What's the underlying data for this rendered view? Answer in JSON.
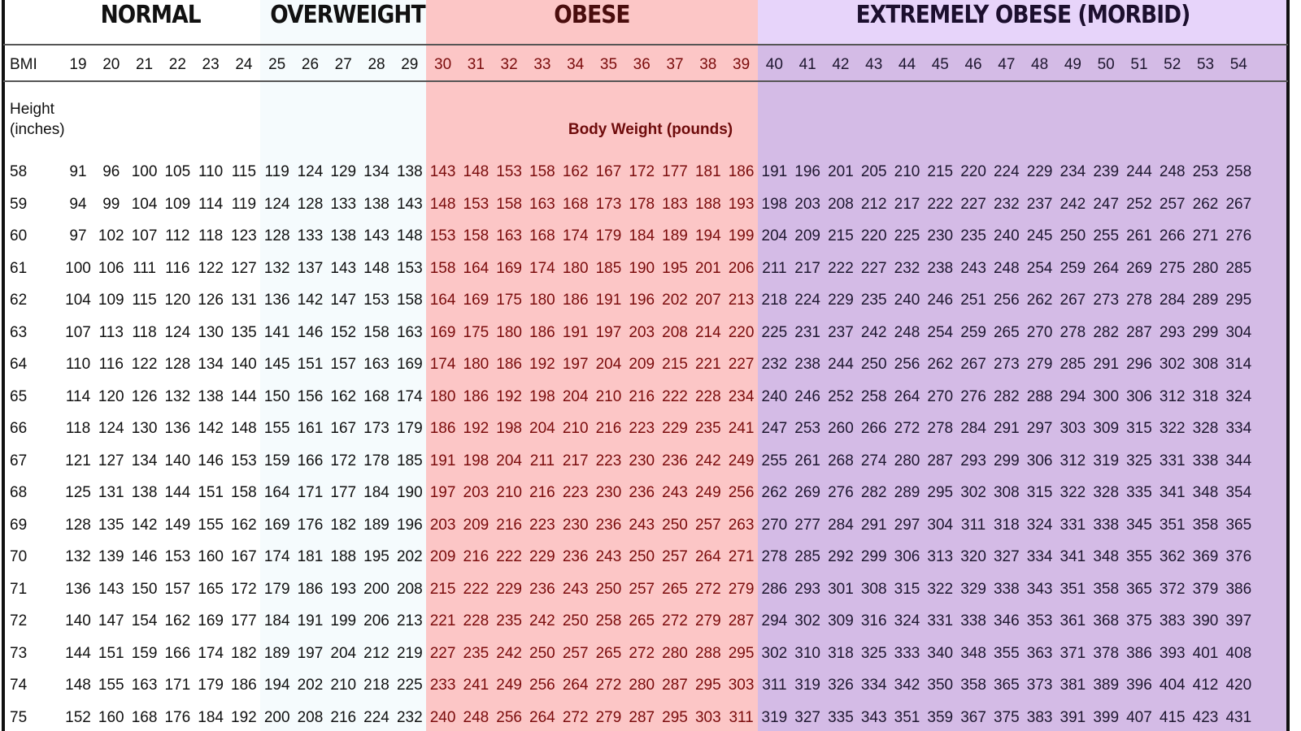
{
  "colors": {
    "normal": "#ffffff",
    "overweight": "#f5fbfd",
    "obese": "#fcc6c6",
    "morbid_header": "#e7d4fa",
    "morbid": "#d4bbe6",
    "obese_text": "#7a0c0c"
  },
  "chart_data": {
    "type": "table",
    "title": "",
    "categories": [
      {
        "label": "NORMAL",
        "bmi_range": [
          19,
          24
        ]
      },
      {
        "label": "OVERWEIGHT",
        "bmi_range": [
          25,
          29
        ]
      },
      {
        "label": "OBESE",
        "bmi_range": [
          30,
          39
        ]
      },
      {
        "label": "EXTREMELY OBESE (MORBID)",
        "bmi_range": [
          40,
          54
        ]
      }
    ],
    "bmi_row_label": "BMI",
    "bmi_values": [
      19,
      20,
      21,
      22,
      23,
      24,
      25,
      26,
      27,
      28,
      29,
      30,
      31,
      32,
      33,
      34,
      35,
      36,
      37,
      38,
      39,
      40,
      41,
      42,
      43,
      44,
      45,
      46,
      47,
      48,
      49,
      50,
      51,
      52,
      53,
      54
    ],
    "height_label": [
      "Height",
      "(inches)"
    ],
    "weight_label": "Body Weight (pounds)",
    "rows": [
      {
        "height": "58",
        "weights": [
          "91",
          "96",
          "100",
          "105",
          "110",
          "115",
          "119",
          "124",
          "129",
          "134",
          "138",
          "143",
          "148",
          "153",
          "158",
          "162",
          "167",
          "172",
          "177",
          "181",
          "186",
          "191",
          "196",
          "201",
          "205",
          "210",
          "215",
          "220",
          "224",
          "229",
          "234",
          "239",
          "244",
          "248",
          "253",
          "258"
        ]
      },
      {
        "height": "59",
        "weights": [
          "94",
          "99",
          "104",
          "109",
          "114",
          "119",
          "124",
          "128",
          "133",
          "138",
          "143",
          "148",
          "153",
          "158",
          "163",
          "168",
          "173",
          "178",
          "183",
          "188",
          "193",
          "198",
          "203",
          "208",
          "212",
          "217",
          "222",
          "227",
          "232",
          "237",
          "242",
          "247",
          "252",
          "257",
          "262",
          "267"
        ]
      },
      {
        "height": "60",
        "weights": [
          "97",
          "102",
          "107",
          "112",
          "118",
          "123",
          "128",
          "133",
          "138",
          "143",
          "148",
          "153",
          "158",
          "163",
          "168",
          "174",
          "179",
          "184",
          "189",
          "194",
          "199",
          "204",
          "209",
          "215",
          "220",
          "225",
          "230",
          "235",
          "240",
          "245",
          "250",
          "255",
          "261",
          "266",
          "271",
          "276"
        ]
      },
      {
        "height": "61",
        "weights": [
          "100",
          "106",
          "111",
          "116",
          "122",
          "127",
          "132",
          "137",
          "143",
          "148",
          "153",
          "158",
          "164",
          "169",
          "174",
          "180",
          "185",
          "190",
          "195",
          "201",
          "206",
          "211",
          "217",
          "222",
          "227",
          "232",
          "238",
          "243",
          "248",
          "254",
          "259",
          "264",
          "269",
          "275",
          "280",
          "285"
        ]
      },
      {
        "height": "62",
        "weights": [
          "104",
          "109",
          "115",
          "120",
          "126",
          "131",
          "136",
          "142",
          "147",
          "153",
          "158",
          "164",
          "169",
          "175",
          "180",
          "186",
          "191",
          "196",
          "202",
          "207",
          "213",
          "218",
          "224",
          "229",
          "235",
          "240",
          "246",
          "251",
          "256",
          "262",
          "267",
          "273",
          "278",
          "284",
          "289",
          "295"
        ]
      },
      {
        "height": "63",
        "weights": [
          "107",
          "113",
          "118",
          "124",
          "130",
          "135",
          "141",
          "146",
          "152",
          "158",
          "163",
          "169",
          "175",
          "180",
          "186",
          "191",
          "197",
          "203",
          "208",
          "214",
          "220",
          "225",
          "231",
          "237",
          "242",
          "248",
          "254",
          "259",
          "265",
          "270",
          "278",
          "282",
          "287",
          "293",
          "299",
          "304"
        ]
      },
      {
        "height": "64",
        "weights": [
          "110",
          "116",
          "122",
          "128",
          "134",
          "140",
          "145",
          "151",
          "157",
          "163",
          "169",
          "174",
          "180",
          "186",
          "192",
          "197",
          "204",
          "209",
          "215",
          "221",
          "227",
          "232",
          "238",
          "244",
          "250",
          "256",
          "262",
          "267",
          "273",
          "279",
          "285",
          "291",
          "296",
          "302",
          "308",
          "314"
        ]
      },
      {
        "height": "65",
        "weights": [
          "114",
          "120",
          "126",
          "132",
          "138",
          "144",
          "150",
          "156",
          "162",
          "168",
          "174",
          "180",
          "186",
          "192",
          "198",
          "204",
          "210",
          "216",
          "222",
          "228",
          "234",
          "240",
          "246",
          "252",
          "258",
          "264",
          "270",
          "276",
          "282",
          "288",
          "294",
          "300",
          "306",
          "312",
          "318",
          "324"
        ]
      },
      {
        "height": "66",
        "weights": [
          "118",
          "124",
          "130",
          "136",
          "142",
          "148",
          "155",
          "161",
          "167",
          "173",
          "179",
          "186",
          "192",
          "198",
          "204",
          "210",
          "216",
          "223",
          "229",
          "235",
          "241",
          "247",
          "253",
          "260",
          "266",
          "272",
          "278",
          "284",
          "291",
          "297",
          "303",
          "309",
          "315",
          "322",
          "328",
          "334"
        ]
      },
      {
        "height": "67",
        "weights": [
          "121",
          "127",
          "134",
          "140",
          "146",
          "153",
          "159",
          "166",
          "172",
          "178",
          "185",
          "191",
          "198",
          "204",
          "211",
          "217",
          "223",
          "230",
          "236",
          "242",
          "249",
          "255",
          "261",
          "268",
          "274",
          "280",
          "287",
          "293",
          "299",
          "306",
          "312",
          "319",
          "325",
          "331",
          "338",
          "344"
        ]
      },
      {
        "height": "68",
        "weights": [
          "125",
          "131",
          "138",
          "144",
          "151",
          "158",
          "164",
          "171",
          "177",
          "184",
          "190",
          "197",
          "203",
          "210",
          "216",
          "223",
          "230",
          "236",
          "243",
          "249",
          "256",
          "262",
          "269",
          "276",
          "282",
          "289",
          "295",
          "302",
          "308",
          "315",
          "322",
          "328",
          "335",
          "341",
          "348",
          "354"
        ]
      },
      {
        "height": "69",
        "weights": [
          "128",
          "135",
          "142",
          "149",
          "155",
          "162",
          "169",
          "176",
          "182",
          "189",
          "196",
          "203",
          "209",
          "216",
          "223",
          "230",
          "236",
          "243",
          "250",
          "257",
          "263",
          "270",
          "277",
          "284",
          "291",
          "297",
          "304",
          "311",
          "318",
          "324",
          "331",
          "338",
          "345",
          "351",
          "358",
          "365"
        ]
      },
      {
        "height": "70",
        "weights": [
          "132",
          "139",
          "146",
          "153",
          "160",
          "167",
          "174",
          "181",
          "188",
          "195",
          "202",
          "209",
          "216",
          "222",
          "229",
          "236",
          "243",
          "250",
          "257",
          "264",
          "271",
          "278",
          "285",
          "292",
          "299",
          "306",
          "313",
          "320",
          "327",
          "334",
          "341",
          "348",
          "355",
          "362",
          "369",
          "376"
        ]
      },
      {
        "height": "71",
        "weights": [
          "136",
          "143",
          "150",
          "157",
          "165",
          "172",
          "179",
          "186",
          "193",
          "200",
          "208",
          "215",
          "222",
          "229",
          "236",
          "243",
          "250",
          "257",
          "265",
          "272",
          "279",
          "286",
          "293",
          "301",
          "308",
          "315",
          "322",
          "329",
          "338",
          "343",
          "351",
          "358",
          "365",
          "372",
          "379",
          "386"
        ]
      },
      {
        "height": "72",
        "weights": [
          "140",
          "147",
          "154",
          "162",
          "169",
          "177",
          "184",
          "191",
          "199",
          "206",
          "213",
          "221",
          "228",
          "235",
          "242",
          "250",
          "258",
          "265",
          "272",
          "279",
          "287",
          "294",
          "302",
          "309",
          "316",
          "324",
          "331",
          "338",
          "346",
          "353",
          "361",
          "368",
          "375",
          "383",
          "390",
          "397"
        ]
      },
      {
        "height": "73",
        "weights": [
          "144",
          "151",
          "159",
          "166",
          "174",
          "182",
          "189",
          "197",
          "204",
          "212",
          "219",
          "227",
          "235",
          "242",
          "250",
          "257",
          "265",
          "272",
          "280",
          "288",
          "295",
          "302",
          "310",
          "318",
          "325",
          "333",
          "340",
          "348",
          "355",
          "363",
          "371",
          "378",
          "386",
          "393",
          "401",
          "408"
        ]
      },
      {
        "height": "74",
        "weights": [
          "148",
          "155",
          "163",
          "171",
          "179",
          "186",
          "194",
          "202",
          "210",
          "218",
          "225",
          "233",
          "241",
          "249",
          "256",
          "264",
          "272",
          "280",
          "287",
          "295",
          "303",
          "311",
          "319",
          "326",
          "334",
          "342",
          "350",
          "358",
          "365",
          "373",
          "381",
          "389",
          "396",
          "404",
          "412",
          "420"
        ]
      },
      {
        "height": "75",
        "weights": [
          "152",
          "160",
          "168",
          "176",
          "184",
          "192",
          "200",
          "208",
          "216",
          "224",
          "232",
          "240",
          "248",
          "256",
          "264",
          "272",
          "279",
          "287",
          "295",
          "303",
          "311",
          "319",
          "327",
          "335",
          "343",
          "351",
          "359",
          "367",
          "375",
          "383",
          "391",
          "399",
          "407",
          "415",
          "423",
          "431"
        ]
      }
    ]
  }
}
